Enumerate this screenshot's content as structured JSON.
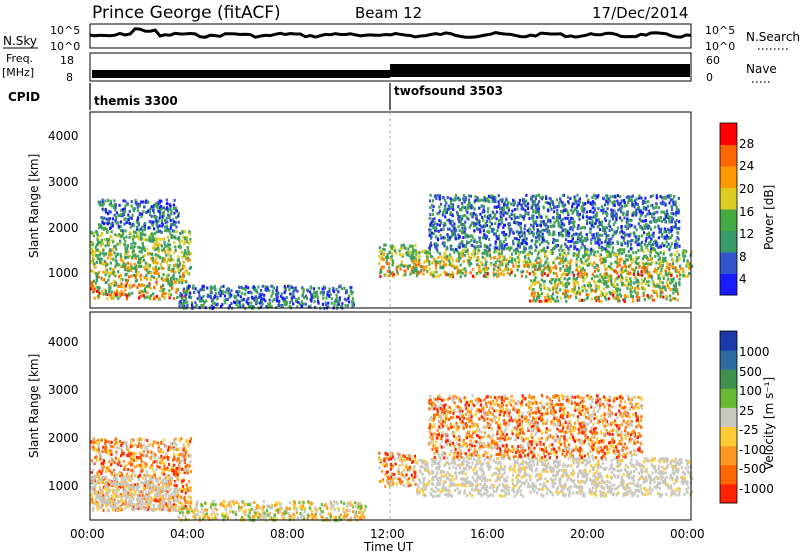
{
  "header": {
    "station": "Prince George (fitACF)",
    "beam": "Beam 12",
    "date": "17/Dec/2014"
  },
  "noise_panel": {
    "left_label": "N.Sky",
    "right_label": "N.Search",
    "ticks": [
      "10^5",
      "10^0"
    ]
  },
  "freq_panel": {
    "left_label": "Freq.",
    "left_unit": "[MHz]",
    "left_ticks": [
      "18",
      "8"
    ],
    "right_label": "Nave",
    "right_ticks": [
      "60",
      "0"
    ]
  },
  "cpid": {
    "label": "CPID",
    "segments": [
      {
        "name": "themis 3300",
        "start_hour": 0,
        "end_hour": 12
      },
      {
        "name": "twofsound 3503",
        "start_hour": 12,
        "end_hour": 24
      }
    ]
  },
  "power_panel": {
    "ylabel": "Slant Range [km]",
    "yticks": [
      "4000",
      "3000",
      "2000",
      "1000"
    ],
    "colorbar_label": "Power [dB]",
    "colorbar_ticks": [
      "28",
      "24",
      "20",
      "16",
      "12",
      "8",
      "4"
    ],
    "colors": [
      "#1a1aff",
      "#3355cc",
      "#3a9a6a",
      "#44aa44",
      "#ddcc22",
      "#ff9900",
      "#ff6600",
      "#ff0000"
    ]
  },
  "velocity_panel": {
    "ylabel": "Slant Range [km]",
    "yticks": [
      "4000",
      "3000",
      "2000",
      "1000"
    ],
    "colorbar_label": "Velocity [m s⁻¹]",
    "colorbar_ticks": [
      "1000",
      "500",
      "100",
      "25",
      "-25",
      "-100",
      "-500",
      "-1000"
    ],
    "colors": [
      "#1a3aaa",
      "#2f6aa0",
      "#3f8f4f",
      "#66bb33",
      "#c8c8c0",
      "#ffcc33",
      "#ff9922",
      "#ff6600",
      "#ff2200"
    ]
  },
  "xaxis": {
    "label": "Time UT",
    "ticks": [
      "00:00",
      "04:00",
      "08:00",
      "12:00",
      "16:00",
      "20:00",
      "00:00"
    ]
  },
  "chart_data": {
    "type": "heatmap",
    "x_range_hours": [
      0,
      24
    ],
    "y_range_km": [
      180,
      4500
    ],
    "power_regions": [
      {
        "t0": 0.0,
        "t1": 4.0,
        "r0": 400,
        "r1": 1900,
        "level": "high"
      },
      {
        "t0": 0.3,
        "t1": 3.5,
        "r0": 1900,
        "r1": 2600,
        "level": "low"
      },
      {
        "t0": 3.5,
        "t1": 10.5,
        "r0": 200,
        "r1": 700,
        "level": "low"
      },
      {
        "t0": 11.5,
        "t1": 13.0,
        "r0": 900,
        "r1": 1600,
        "level": "high"
      },
      {
        "t0": 12.8,
        "t1": 24.0,
        "r0": 900,
        "r1": 1500,
        "level": "high"
      },
      {
        "t0": 17.5,
        "t1": 23.5,
        "r0": 350,
        "r1": 900,
        "level": "high"
      },
      {
        "t0": 13.5,
        "t1": 23.5,
        "r0": 1500,
        "r1": 2700,
        "level": "low"
      }
    ],
    "velocity_regions": [
      {
        "t0": 0.0,
        "t1": 4.0,
        "r0": 400,
        "r1": 1900,
        "type": "negative"
      },
      {
        "t0": 0.0,
        "t1": 3.5,
        "r0": 400,
        "r1": 1100,
        "type": "ground"
      },
      {
        "t0": 3.5,
        "t1": 11.0,
        "r0": 200,
        "r1": 600,
        "type": "mixed"
      },
      {
        "t0": 11.5,
        "t1": 13.0,
        "r0": 900,
        "r1": 1600,
        "type": "negative"
      },
      {
        "t0": 13.0,
        "t1": 24.0,
        "r0": 700,
        "r1": 1500,
        "type": "ground"
      },
      {
        "t0": 13.5,
        "t1": 22.0,
        "r0": 1500,
        "r1": 2800,
        "type": "negative"
      }
    ]
  }
}
